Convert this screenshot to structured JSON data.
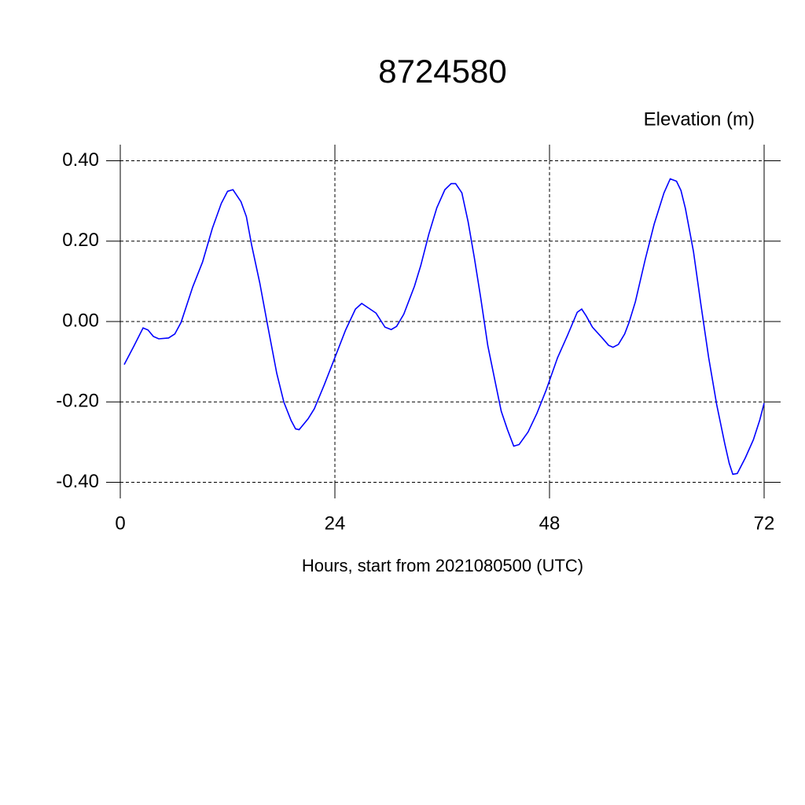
{
  "chart_data": {
    "type": "line",
    "title": "8724580",
    "value_label": "Elevation (m)",
    "x_label": "Hours, start from 2021080500 (UTC)",
    "x": [
      0.44,
      1.5,
      2.55,
      3.1,
      3.7,
      4.3,
      5.4,
      6.1,
      6.8,
      8.1,
      9.2,
      10.3,
      11.3,
      12.0,
      12.6,
      13.5,
      14.1,
      14.7,
      15.6,
      16.5,
      17.5,
      18.3,
      19.1,
      19.6,
      20.0,
      21.0,
      21.7,
      22.8,
      24.1,
      25.2,
      26.3,
      27.0,
      28.6,
      29.6,
      30.3,
      30.9,
      31.7,
      32.9,
      33.6,
      34.5,
      35.4,
      36.3,
      37.0,
      37.5,
      38.2,
      38.9,
      39.6,
      40.3,
      41.1,
      42.0,
      42.6,
      43.3,
      44.0,
      44.6,
      45.6,
      46.6,
      47.6,
      48.9,
      50.0,
      51.1,
      51.6,
      52.1,
      52.8,
      53.9,
      54.6,
      55.1,
      55.7,
      56.4,
      56.9,
      57.6,
      58.7,
      59.7,
      60.8,
      61.5,
      62.2,
      62.7,
      63.2,
      64.1,
      64.9,
      65.8,
      66.7,
      67.6,
      68.1,
      68.5,
      69.0,
      69.9,
      70.8,
      71.5,
      72.0
    ],
    "series": [
      {
        "name": "Elevation",
        "color": "#0000ff",
        "values": [
          -0.107,
          -0.062,
          -0.016,
          -0.021,
          -0.037,
          -0.043,
          -0.041,
          -0.031,
          -0.002,
          0.086,
          0.148,
          0.232,
          0.294,
          0.324,
          0.328,
          0.298,
          0.261,
          0.189,
          0.096,
          -0.012,
          -0.129,
          -0.201,
          -0.246,
          -0.267,
          -0.269,
          -0.242,
          -0.217,
          -0.158,
          -0.084,
          -0.021,
          0.031,
          0.045,
          0.021,
          -0.014,
          -0.02,
          -0.012,
          0.018,
          0.088,
          0.139,
          0.217,
          0.283,
          0.328,
          0.343,
          0.343,
          0.32,
          0.248,
          0.158,
          0.06,
          -0.06,
          -0.158,
          -0.223,
          -0.269,
          -0.31,
          -0.306,
          -0.275,
          -0.228,
          -0.172,
          -0.09,
          -0.035,
          0.023,
          0.031,
          0.014,
          -0.014,
          -0.041,
          -0.059,
          -0.064,
          -0.057,
          -0.031,
          -0.002,
          0.049,
          0.154,
          0.242,
          0.32,
          0.355,
          0.349,
          0.326,
          0.281,
          0.174,
          0.047,
          -0.09,
          -0.207,
          -0.304,
          -0.353,
          -0.38,
          -0.378,
          -0.339,
          -0.294,
          -0.246,
          -0.203
        ]
      }
    ],
    "xlim": [
      0,
      72
    ],
    "xticks": [
      0,
      24,
      48,
      72
    ],
    "ylim": [
      -0.44,
      0.44
    ],
    "yticks": [
      {
        "value": -0.4,
        "label": "-0.40"
      },
      {
        "value": -0.2,
        "label": "-0.20"
      },
      {
        "value": 0,
        "label": "0.00"
      },
      {
        "value": 0.2,
        "label": "0.20"
      },
      {
        "value": 0.4,
        "label": "0.40"
      }
    ],
    "grid": true
  }
}
